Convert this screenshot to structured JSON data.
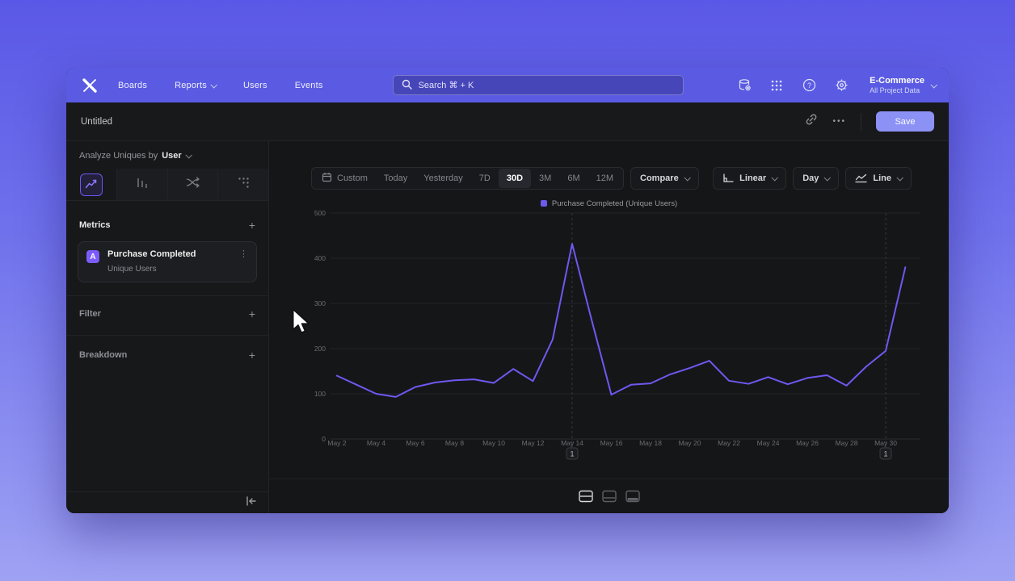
{
  "nav": {
    "items": [
      {
        "label": "Boards",
        "chevron": false
      },
      {
        "label": "Reports",
        "chevron": true
      },
      {
        "label": "Users",
        "chevron": false
      },
      {
        "label": "Events",
        "chevron": false
      }
    ],
    "search": {
      "placeholder": "Search  ⌘ + K"
    },
    "project": {
      "name": "E-Commerce",
      "subtitle": "All Project Data"
    },
    "icons": [
      "data-icon",
      "apps-grid-icon",
      "help-icon",
      "settings-gear-icon"
    ]
  },
  "header": {
    "title": "Untitled",
    "menu_dots": "•••",
    "save_label": "Save"
  },
  "sidebar": {
    "analyze": {
      "prefix": "Analyze Uniques by",
      "value": "User"
    },
    "tabs": [
      {
        "name": "insights",
        "selected": true
      },
      {
        "name": "funnels",
        "selected": false
      },
      {
        "name": "flows",
        "selected": false
      },
      {
        "name": "retention",
        "selected": false
      }
    ],
    "metrics": {
      "title": "Metrics",
      "add_label": "+",
      "items": [
        {
          "letter": "A",
          "name": "Purchase Completed",
          "subtitle": "Unique Users"
        }
      ]
    },
    "filter": {
      "title": "Filter",
      "add_label": "+"
    },
    "breakdown": {
      "title": "Breakdown",
      "add_label": "+"
    },
    "kebab": "⋮"
  },
  "toolbar": {
    "ranges": [
      {
        "label": "Custom",
        "icon": "calendar",
        "selected": false
      },
      {
        "label": "Today",
        "selected": false
      },
      {
        "label": "Yesterday",
        "selected": false
      },
      {
        "label": "7D",
        "selected": false
      },
      {
        "label": "30D",
        "selected": true
      },
      {
        "label": "3M",
        "selected": false
      },
      {
        "label": "6M",
        "selected": false
      },
      {
        "label": "12M",
        "selected": false
      }
    ],
    "compare_label": "Compare",
    "scale_label": "Linear",
    "granularity_label": "Day",
    "chart_type_label": "Line"
  },
  "chart_data": {
    "type": "line",
    "series": [
      {
        "name": "Purchase Completed (Unique Users)",
        "color": "#6d59f0",
        "values": [
          140,
          120,
          100,
          93,
          115,
          125,
          130,
          132,
          124,
          155,
          128,
          220,
          432,
          262,
          98,
          120,
          123,
          143,
          157,
          173,
          129,
          122,
          137,
          121,
          135,
          141,
          118,
          160,
          195,
          380
        ]
      }
    ],
    "categories": [
      "May 2",
      "May 3",
      "May 4",
      "May 5",
      "May 6",
      "May 7",
      "May 8",
      "May 9",
      "May 10",
      "May 11",
      "May 12",
      "May 13",
      "May 14",
      "May 15",
      "May 16",
      "May 17",
      "May 18",
      "May 19",
      "May 20",
      "May 21",
      "May 22",
      "May 23",
      "May 24",
      "May 25",
      "May 26",
      "May 27",
      "May 28",
      "May 29",
      "May 30",
      "May 31"
    ],
    "x_tick_every": 2,
    "yticks": [
      0,
      100,
      200,
      300,
      400,
      500
    ],
    "ylim": [
      0,
      500
    ],
    "grid": "horizontal",
    "legend_position": "top-center",
    "annotations": [
      {
        "label": "1",
        "x_index": 12
      },
      {
        "label": "1",
        "x_index": 28
      }
    ]
  },
  "bottom_toolbar": {
    "layouts": [
      {
        "name": "layout-split-rows",
        "selected": true
      },
      {
        "name": "layout-mid-panel",
        "selected": false
      },
      {
        "name": "layout-bottom-panel",
        "selected": false
      }
    ]
  },
  "colors": {
    "accent": "#7b5cf8",
    "line": "#6d59f0",
    "nav": "#5a5be2",
    "save_button": "#8c92f5"
  }
}
